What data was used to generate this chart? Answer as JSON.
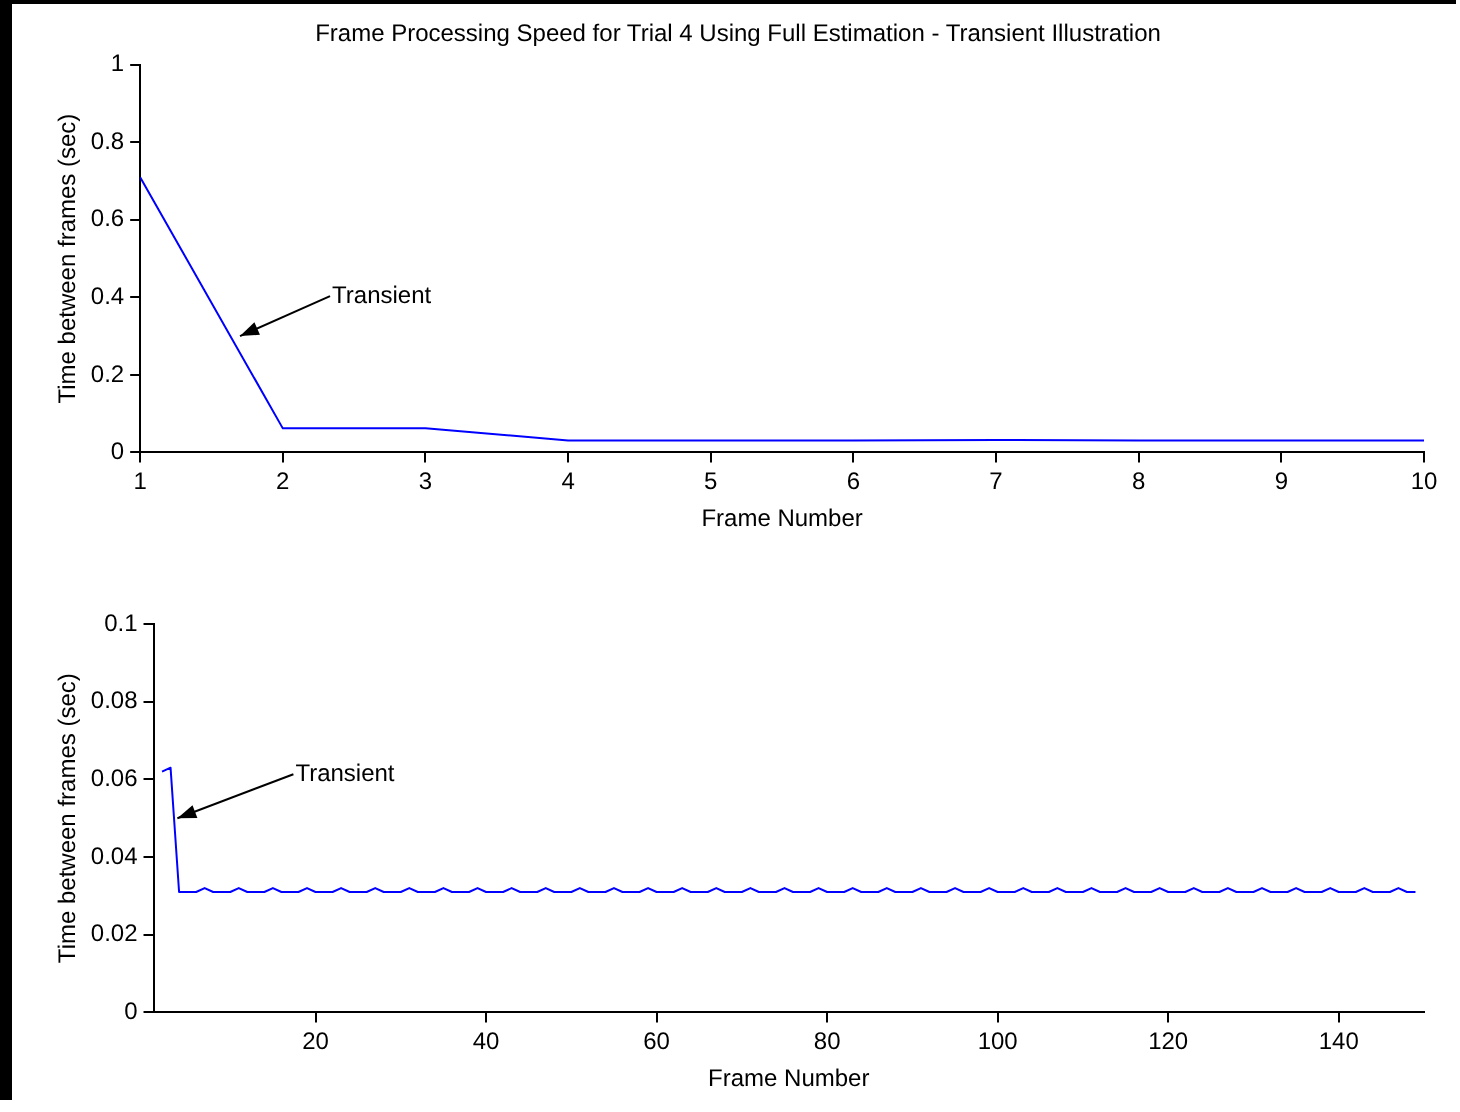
{
  "chart_data": [
    {
      "type": "line",
      "title": "Frame Processing Speed for Trial 4 Using Full Estimation - Transient Illustration",
      "xlabel": "Frame Number",
      "ylabel": "Time between frames (sec)",
      "color": "#0000ff",
      "x": [
        1,
        2,
        3,
        4,
        5,
        6,
        7,
        8,
        9,
        10
      ],
      "values": [
        0.71,
        0.062,
        0.062,
        0.031,
        0.031,
        0.031,
        0.032,
        0.031,
        0.031,
        0.031
      ],
      "xlim": [
        1,
        10
      ],
      "xticks": [
        1,
        2,
        3,
        4,
        5,
        6,
        7,
        8,
        9,
        10
      ],
      "ylim": [
        0,
        1
      ],
      "yticks": [
        0,
        0.2,
        0.4,
        0.6,
        0.8,
        1
      ],
      "grid": false,
      "legend": false,
      "annotations": [
        {
          "text": "Transient",
          "x": 1.7,
          "y": 0.3
        }
      ]
    },
    {
      "type": "line",
      "xlabel": "Frame Number",
      "ylabel": "Time between frames (sec)",
      "color": "#0000ff",
      "x": [
        2,
        3,
        4,
        5,
        6,
        7,
        8,
        9,
        10,
        11,
        12,
        13,
        14,
        15,
        16,
        17,
        18,
        19,
        20,
        21,
        22,
        23,
        24,
        25,
        26,
        27,
        28,
        29,
        30,
        31,
        32,
        33,
        34,
        35,
        36,
        37,
        38,
        39,
        40,
        41,
        42,
        43,
        44,
        45,
        46,
        47,
        48,
        49,
        50,
        51,
        52,
        53,
        54,
        55,
        56,
        57,
        58,
        59,
        60,
        61,
        62,
        63,
        64,
        65,
        66,
        67,
        68,
        69,
        70,
        71,
        72,
        73,
        74,
        75,
        76,
        77,
        78,
        79,
        80,
        81,
        82,
        83,
        84,
        85,
        86,
        87,
        88,
        89,
        90,
        91,
        92,
        93,
        94,
        95,
        96,
        97,
        98,
        99,
        100,
        101,
        102,
        103,
        104,
        105,
        106,
        107,
        108,
        109,
        110,
        111,
        112,
        113,
        114,
        115,
        116,
        117,
        118,
        119,
        120,
        121,
        122,
        123,
        124,
        125,
        126,
        127,
        128,
        129,
        130,
        131,
        132,
        133,
        134,
        135,
        136,
        137,
        138,
        139,
        140,
        141,
        142,
        143,
        144,
        145,
        146,
        147,
        148,
        149
      ],
      "values": [
        0.062,
        0.063,
        0.031,
        0.031,
        0.031,
        0.032,
        0.031,
        0.031,
        0.031,
        0.032,
        0.031,
        0.031,
        0.031,
        0.032,
        0.031,
        0.031,
        0.031,
        0.032,
        0.031,
        0.031,
        0.031,
        0.032,
        0.031,
        0.031,
        0.031,
        0.032,
        0.031,
        0.031,
        0.031,
        0.032,
        0.031,
        0.031,
        0.031,
        0.032,
        0.031,
        0.031,
        0.031,
        0.032,
        0.031,
        0.031,
        0.031,
        0.032,
        0.031,
        0.031,
        0.031,
        0.032,
        0.031,
        0.031,
        0.031,
        0.032,
        0.031,
        0.031,
        0.031,
        0.032,
        0.031,
        0.031,
        0.031,
        0.032,
        0.031,
        0.031,
        0.031,
        0.032,
        0.031,
        0.031,
        0.031,
        0.032,
        0.031,
        0.031,
        0.031,
        0.032,
        0.031,
        0.031,
        0.031,
        0.032,
        0.031,
        0.031,
        0.031,
        0.032,
        0.031,
        0.031,
        0.031,
        0.032,
        0.031,
        0.031,
        0.031,
        0.032,
        0.031,
        0.031,
        0.031,
        0.032,
        0.031,
        0.031,
        0.031,
        0.032,
        0.031,
        0.031,
        0.031,
        0.032,
        0.031,
        0.031,
        0.031,
        0.032,
        0.031,
        0.031,
        0.031,
        0.032,
        0.031,
        0.031,
        0.031,
        0.032,
        0.031,
        0.031,
        0.031,
        0.032,
        0.031,
        0.031,
        0.031,
        0.032,
        0.031,
        0.031,
        0.031,
        0.032,
        0.031,
        0.031,
        0.031,
        0.032,
        0.031,
        0.031,
        0.031,
        0.032,
        0.031,
        0.031,
        0.031,
        0.032,
        0.031,
        0.031,
        0.031,
        0.032,
        0.031,
        0.031,
        0.031,
        0.032,
        0.031,
        0.031,
        0.031,
        0.032,
        0.031,
        0.031
      ],
      "xlim": [
        1,
        150
      ],
      "xticks": [
        20,
        40,
        60,
        80,
        100,
        120,
        140
      ],
      "ylim": [
        0,
        0.1
      ],
      "yticks": [
        0,
        0.02,
        0.04,
        0.06,
        0.08,
        0.1
      ],
      "grid": false,
      "legend": false,
      "annotations": [
        {
          "text": "Transient",
          "x": 3.8,
          "y": 0.05
        }
      ]
    }
  ]
}
